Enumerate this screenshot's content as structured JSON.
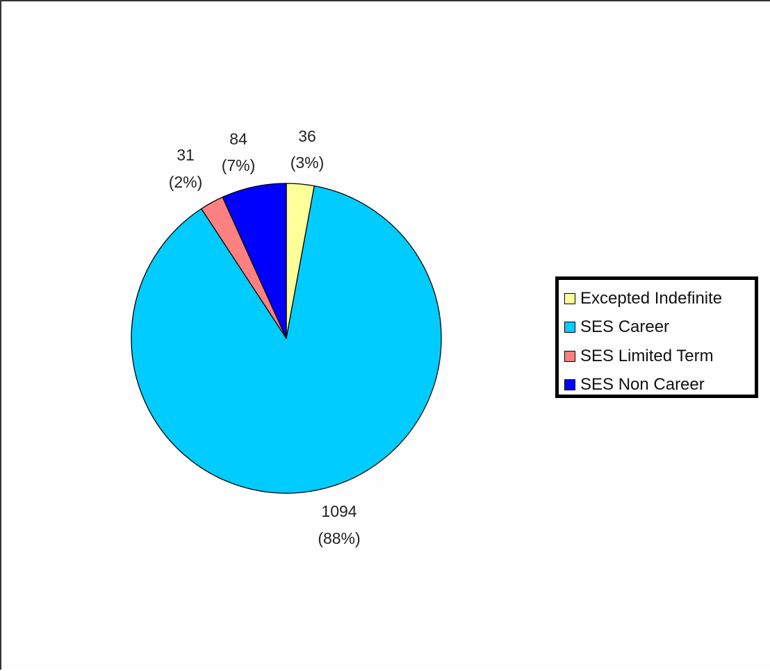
{
  "chart_data": {
    "type": "pie",
    "title": "",
    "categories": [
      "Excepted Indefinite",
      "SES Career",
      "SES Limited Term",
      "SES Non Career"
    ],
    "values": [
      36,
      1094,
      31,
      84
    ],
    "percent_labels": [
      "(3%)",
      "(88%)",
      "(2%)",
      "(7%)"
    ],
    "value_labels": [
      "36",
      "1094",
      "31",
      "84"
    ],
    "colors": [
      "#FFFF99",
      "#00CCFF",
      "#FF8080",
      "#0000FF"
    ],
    "start_angle_deg": 0,
    "direction": "clockwise",
    "legend_placement": "right"
  },
  "legend": {
    "items": [
      {
        "label": "Excepted Indefinite",
        "color": "#FFFF99"
      },
      {
        "label": "SES Career",
        "color": "#00CCFF"
      },
      {
        "label": "SES Limited Term",
        "color": "#FF8080"
      },
      {
        "label": "SES Non Career",
        "color": "#0000FF"
      }
    ]
  }
}
